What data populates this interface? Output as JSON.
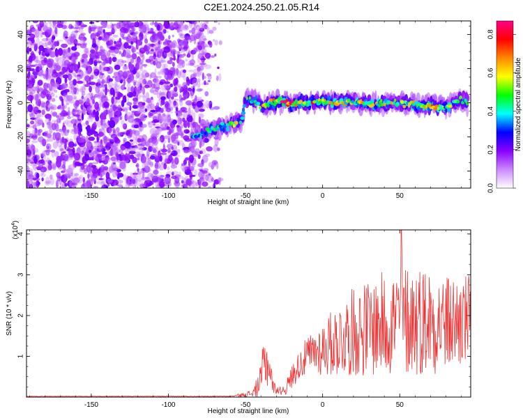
{
  "title": "C2E1.2024.250.21.05.R14",
  "chart_data": [
    {
      "type": "heatmap",
      "title": "C2E1.2024.250.21.05.R14",
      "xlabel": "Height of straight line (km)",
      "ylabel": "Frequency (Hz)",
      "xlim": [
        -192,
        96
      ],
      "ylim": [
        -50,
        48
      ],
      "x_ticks": [
        "-150",
        "-100",
        "-50",
        "0",
        "50"
      ],
      "y_ticks": [
        "-40",
        "-20",
        "0",
        "20",
        "40"
      ],
      "grid": false,
      "colorbar": {
        "label": "Normalized spectral amplitude",
        "range": [
          0,
          0.87
        ],
        "ticks": [
          "0.0",
          "0.2",
          "0.4",
          "0.6",
          "0.8"
        ],
        "colormap": [
          "#ffffff",
          "#cc88ff",
          "#8800ff",
          "#0000ff",
          "#00ffff",
          "#00ff00",
          "#ffff00",
          "#ff8800",
          "#ff0000",
          "#ff0088"
        ]
      },
      "noise_region_x": [
        -192,
        -76
      ],
      "ridge": {
        "x": [
          -85,
          -75,
          -65,
          -57,
          -52,
          -50,
          -45,
          -40,
          -30,
          -20,
          -10,
          0,
          10,
          20,
          30,
          40,
          50,
          60,
          70,
          80,
          90,
          94
        ],
        "frequency": [
          -20,
          -17,
          -14,
          -12,
          -10,
          3,
          2,
          -2,
          1,
          0,
          0,
          1,
          0,
          1,
          -1,
          0,
          0,
          -1,
          -2,
          -3,
          2,
          0
        ],
        "peak_amplitude": [
          0.3,
          0.45,
          0.5,
          0.55,
          0.5,
          0.5,
          0.55,
          0.5,
          0.7,
          0.85,
          0.7,
          0.65,
          0.6,
          0.55,
          0.6,
          0.55,
          0.55,
          0.6,
          0.65,
          0.5,
          0.5,
          0.4
        ]
      }
    },
    {
      "type": "line",
      "xlabel": "Height of straight line (km)",
      "ylabel": "SNR (10 * v/v)",
      "y_multiplier": "(x10^4)",
      "xlim": [
        -192,
        96
      ],
      "ylim": [
        0,
        4.1
      ],
      "x_ticks": [
        "-150",
        "-100",
        "-50",
        "0",
        "50"
      ],
      "y_ticks": [
        "1",
        "2",
        "3",
        "4"
      ],
      "color": "#ee3333",
      "envelope": {
        "x": [
          -192,
          -60,
          -52,
          -45,
          -40,
          -38,
          -35,
          -32,
          -28,
          -24,
          -20,
          -15,
          -10,
          -5,
          0,
          10,
          20,
          30,
          40,
          50,
          60,
          70,
          80,
          90,
          96
        ],
        "baseline": [
          0.02,
          0.02,
          0.05,
          0.1,
          0.4,
          0.9,
          0.8,
          0.25,
          0.15,
          0.2,
          0.5,
          0.8,
          1.0,
          1.1,
          1.2,
          1.4,
          1.6,
          1.7,
          1.8,
          1.9,
          1.9,
          1.9,
          1.8,
          1.85,
          1.9
        ],
        "amplitude": [
          0.005,
          0.01,
          0.05,
          0.1,
          0.4,
          0.7,
          0.6,
          0.15,
          0.1,
          0.15,
          0.3,
          0.35,
          0.5,
          0.55,
          0.7,
          0.9,
          1.1,
          1.2,
          1.3,
          1.4,
          1.4,
          1.35,
          1.2,
          1.2,
          1.1
        ]
      },
      "max_value": 4.1,
      "max_value_x": 51
    }
  ]
}
